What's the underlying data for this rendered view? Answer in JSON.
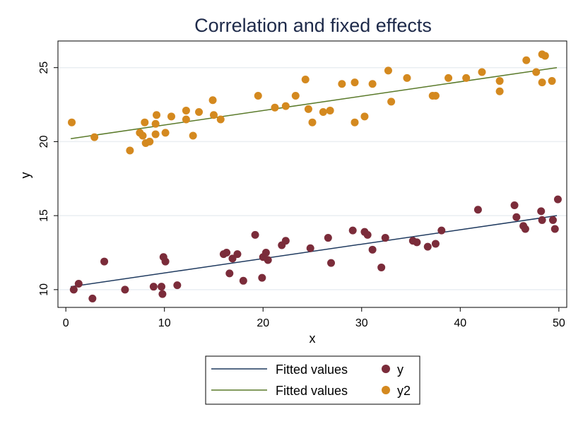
{
  "chart_data": {
    "type": "scatter",
    "title": "Correlation and fixed effects",
    "xlabel": "x",
    "ylabel": "y",
    "xlim": [
      -0.8,
      50.8
    ],
    "ylim": [
      8.8,
      26.8
    ],
    "x_ticks": [
      0,
      10,
      20,
      30,
      40,
      50
    ],
    "y_ticks": [
      10,
      15,
      20,
      25
    ],
    "grid": "horizontal",
    "legend_position": "bottom",
    "legend": [
      {
        "label": "Fitted values",
        "kind": "line",
        "color": "#1f3a5f"
      },
      {
        "label": "y",
        "kind": "marker",
        "color": "#7b2c3a"
      },
      {
        "label": "Fitted values",
        "kind": "line",
        "color": "#5a7a2a"
      },
      {
        "label": "y2",
        "kind": "marker",
        "color": "#d4891f"
      }
    ],
    "series": [
      {
        "name": "y",
        "color": "#7b2c3a",
        "points": [
          [
            0.8,
            10.0
          ],
          [
            1.3,
            10.4
          ],
          [
            2.7,
            9.4
          ],
          [
            3.9,
            11.9
          ],
          [
            6.0,
            10.0
          ],
          [
            8.9,
            10.2
          ],
          [
            9.7,
            10.2
          ],
          [
            9.8,
            9.7
          ],
          [
            9.9,
            12.2
          ],
          [
            10.1,
            11.9
          ],
          [
            11.3,
            10.3
          ],
          [
            16.0,
            12.4
          ],
          [
            16.3,
            12.5
          ],
          [
            16.6,
            11.1
          ],
          [
            16.9,
            12.1
          ],
          [
            17.4,
            12.4
          ],
          [
            18.0,
            10.6
          ],
          [
            19.2,
            13.7
          ],
          [
            19.9,
            10.8
          ],
          [
            20.0,
            12.2
          ],
          [
            20.3,
            12.5
          ],
          [
            20.5,
            12.0
          ],
          [
            21.9,
            13.0
          ],
          [
            22.3,
            13.3
          ],
          [
            24.8,
            12.8
          ],
          [
            26.6,
            13.5
          ],
          [
            26.9,
            11.8
          ],
          [
            29.1,
            14.0
          ],
          [
            30.3,
            13.9
          ],
          [
            30.6,
            13.7
          ],
          [
            31.1,
            12.7
          ],
          [
            32.0,
            11.5
          ],
          [
            32.4,
            13.5
          ],
          [
            35.2,
            13.3
          ],
          [
            35.6,
            13.2
          ],
          [
            36.7,
            12.9
          ],
          [
            37.5,
            13.1
          ],
          [
            38.1,
            14.0
          ],
          [
            41.8,
            15.4
          ],
          [
            45.5,
            15.7
          ],
          [
            45.7,
            14.9
          ],
          [
            46.4,
            14.3
          ],
          [
            46.6,
            14.1
          ],
          [
            48.2,
            15.3
          ],
          [
            48.3,
            14.7
          ],
          [
            49.4,
            14.7
          ],
          [
            49.6,
            14.1
          ],
          [
            49.9,
            16.1
          ]
        ],
        "fit": [
          [
            0.5,
            10.2
          ],
          [
            49.8,
            15.0
          ]
        ],
        "fit_color": "#1f3a5f"
      },
      {
        "name": "y2",
        "color": "#d4891f",
        "points": [
          [
            0.6,
            21.3
          ],
          [
            2.9,
            20.3
          ],
          [
            6.5,
            19.4
          ],
          [
            7.5,
            20.6
          ],
          [
            7.8,
            20.4
          ],
          [
            8.0,
            21.3
          ],
          [
            8.1,
            19.9
          ],
          [
            8.5,
            20.0
          ],
          [
            9.1,
            20.5
          ],
          [
            9.1,
            21.2
          ],
          [
            9.2,
            21.8
          ],
          [
            10.1,
            20.6
          ],
          [
            10.7,
            21.7
          ],
          [
            12.2,
            21.5
          ],
          [
            12.2,
            22.1
          ],
          [
            12.9,
            20.4
          ],
          [
            13.5,
            22.0
          ],
          [
            14.9,
            22.8
          ],
          [
            15.0,
            21.8
          ],
          [
            15.7,
            21.5
          ],
          [
            19.5,
            23.1
          ],
          [
            21.2,
            22.3
          ],
          [
            22.3,
            22.4
          ],
          [
            23.3,
            23.1
          ],
          [
            24.3,
            24.2
          ],
          [
            24.6,
            22.2
          ],
          [
            25.0,
            21.3
          ],
          [
            26.1,
            22.0
          ],
          [
            26.8,
            22.1
          ],
          [
            28.0,
            23.9
          ],
          [
            29.3,
            21.3
          ],
          [
            29.3,
            24.0
          ],
          [
            30.3,
            21.7
          ],
          [
            31.1,
            23.9
          ],
          [
            32.7,
            24.8
          ],
          [
            33.0,
            22.7
          ],
          [
            34.6,
            24.3
          ],
          [
            37.2,
            23.1
          ],
          [
            37.5,
            23.1
          ],
          [
            38.8,
            24.3
          ],
          [
            40.6,
            24.3
          ],
          [
            42.2,
            24.7
          ],
          [
            44.0,
            24.1
          ],
          [
            44.0,
            23.4
          ],
          [
            46.7,
            25.5
          ],
          [
            47.7,
            24.7
          ],
          [
            48.3,
            24.0
          ],
          [
            48.3,
            25.9
          ],
          [
            48.6,
            25.8
          ],
          [
            49.3,
            24.1
          ]
        ],
        "fit": [
          [
            0.5,
            20.2
          ],
          [
            49.8,
            25.0
          ]
        ],
        "fit_color": "#5a7a2a"
      }
    ]
  }
}
